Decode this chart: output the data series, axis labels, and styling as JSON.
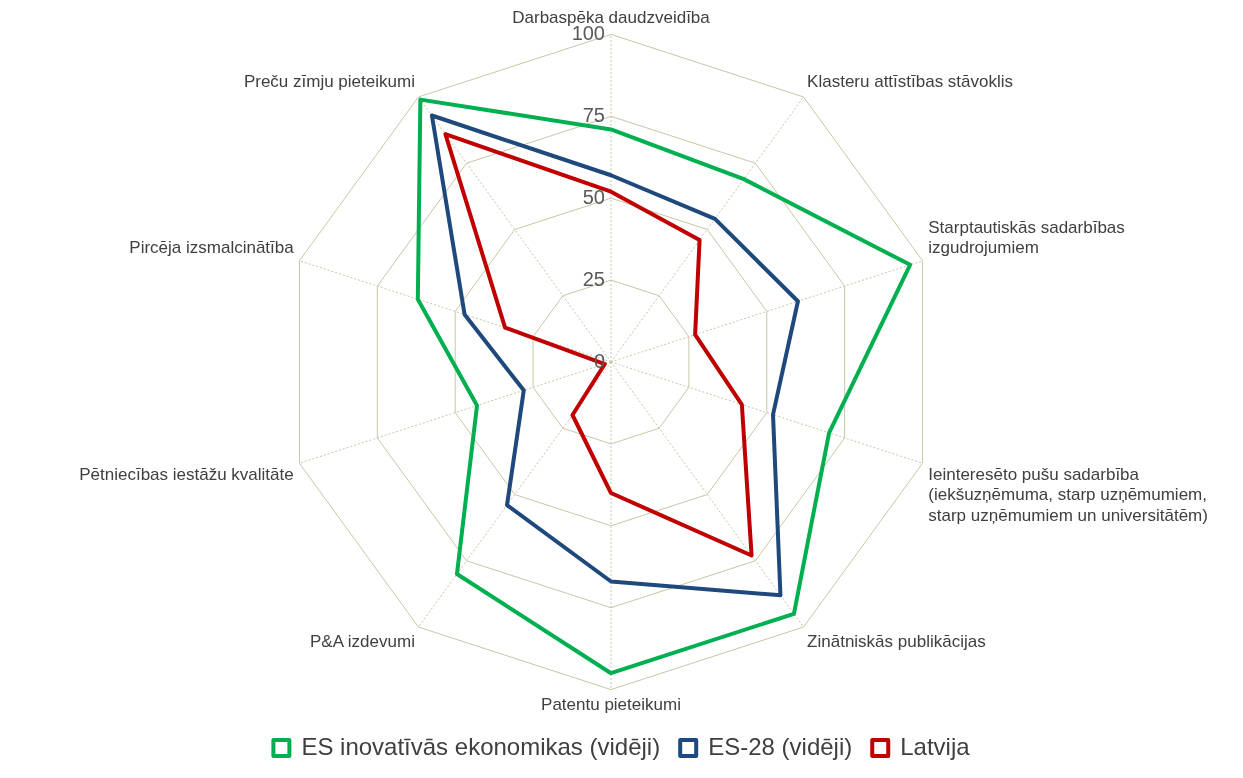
{
  "chart_data": {
    "type": "radar",
    "categories": [
      "Darbaspēka daudzveidība",
      "Klasteru attīstības stāvoklis",
      "Starptautiskās sadarbības izgudrojumiem",
      "Ieinteresēto pušu sadarbība (iekšuzņēmuma, starp uzņēmumiem, starp uzņēmumiem un universitātēm)",
      "Zinātniskās publikācijas",
      "Patentu pieteikumi",
      "P&A izdevumi",
      "Pētniecības iestāžu kvalitāte",
      "Pircēja izsmalcinātība",
      "Preču zīmju pieteikumi"
    ],
    "series": [
      {
        "name": "ES inovatīvās ekonomikas (vidēji)",
        "color": "#00b050",
        "values": [
          71,
          69,
          96,
          70,
          95,
          95,
          80,
          43,
          62,
          99
        ]
      },
      {
        "name": "ES-28 (vidēji)",
        "color": "#1f497d",
        "values": [
          57,
          54,
          60,
          52,
          88,
          67,
          54,
          28,
          47,
          93
        ]
      },
      {
        "name": "Latvija",
        "color": "#c00000",
        "values": [
          52,
          46,
          27,
          42,
          73,
          40,
          20,
          2,
          34,
          86
        ]
      }
    ],
    "ylim": [
      0,
      100
    ],
    "yticks": [
      0,
      25,
      50,
      75,
      100
    ],
    "grid": true,
    "legend": "bottom",
    "marker": "none",
    "line_style": "solid"
  }
}
